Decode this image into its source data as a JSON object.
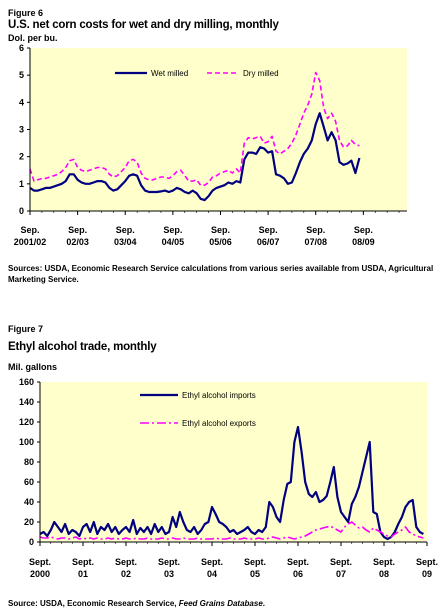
{
  "figure6": {
    "label": "Figure 6",
    "title": "U.S. net corn costs for wet and dry milling, monthly",
    "unit": "Dol. per bu.",
    "source": "Sources: USDA, Economic Research Service calculations from various series available from USDA, Agricultural Marketing Service."
  },
  "figure7": {
    "label": "Figure 7",
    "title": "Ethyl alcohol trade, monthly",
    "unit": "Mil. gallons",
    "source_prefix": "Source:  USDA, Economic Research Service, ",
    "source_italic": "Feed Grains Database",
    "source_suffix": "."
  },
  "chart_data": [
    {
      "type": "line",
      "background": "#ffffcc",
      "ylim": [
        0,
        6
      ],
      "yticks": [
        0,
        1,
        2,
        3,
        4,
        5,
        6
      ],
      "xlim": [
        0,
        95
      ],
      "xtick_positions": [
        0,
        12,
        24,
        36,
        48,
        60,
        72,
        84
      ],
      "xtick_labels": [
        [
          "Sep.",
          "2001/02"
        ],
        [
          "Sep.",
          "02/03"
        ],
        [
          "Sep.",
          "03/04"
        ],
        [
          "Sep.",
          "04/05"
        ],
        [
          "Sep.",
          "05/06"
        ],
        [
          "Sep.",
          "06/07"
        ],
        [
          "Sep.",
          "07/08"
        ],
        [
          "Sep.",
          "08/09"
        ]
      ],
      "grid": false,
      "legend_position": "top",
      "series": [
        {
          "name": "Wet milled",
          "color": "#000080",
          "dash": "solid",
          "values": [
            0.85,
            0.75,
            0.75,
            0.8,
            0.85,
            0.85,
            0.9,
            0.95,
            1.0,
            1.1,
            1.35,
            1.35,
            1.15,
            1.05,
            1.0,
            1.0,
            1.05,
            1.1,
            1.1,
            1.05,
            0.85,
            0.75,
            0.8,
            0.95,
            1.1,
            1.3,
            1.35,
            1.3,
            0.95,
            0.75,
            0.7,
            0.7,
            0.7,
            0.72,
            0.75,
            0.7,
            0.75,
            0.85,
            0.8,
            0.7,
            0.65,
            0.75,
            0.65,
            0.45,
            0.4,
            0.55,
            0.75,
            0.85,
            0.9,
            0.95,
            1.05,
            1.0,
            1.1,
            1.05,
            1.9,
            2.15,
            2.15,
            2.1,
            2.35,
            2.3,
            2.15,
            2.2,
            1.35,
            1.3,
            1.2,
            1.0,
            1.05,
            1.4,
            1.8,
            2.1,
            2.3,
            2.6,
            3.2,
            3.6,
            3.1,
            2.6,
            2.9,
            2.6,
            1.8,
            1.7,
            1.75,
            1.85,
            1.4,
            1.95
          ]
        },
        {
          "name": "Dry milled",
          "color": "#ff00ff",
          "dash": "dashed",
          "values": [
            1.55,
            1.1,
            1.15,
            1.2,
            1.2,
            1.25,
            1.3,
            1.35,
            1.45,
            1.6,
            1.85,
            1.9,
            1.6,
            1.5,
            1.45,
            1.5,
            1.55,
            1.6,
            1.6,
            1.55,
            1.35,
            1.25,
            1.3,
            1.45,
            1.6,
            1.85,
            1.9,
            1.8,
            1.4,
            1.2,
            1.15,
            1.15,
            1.2,
            1.25,
            1.25,
            1.2,
            1.3,
            1.45,
            1.5,
            1.3,
            1.1,
            1.1,
            1.15,
            0.95,
            0.95,
            1.05,
            1.25,
            1.3,
            1.4,
            1.45,
            1.5,
            1.4,
            1.55,
            1.4,
            2.5,
            2.7,
            2.65,
            2.7,
            2.75,
            2.5,
            2.55,
            2.75,
            2.2,
            2.1,
            2.2,
            2.3,
            2.5,
            2.8,
            3.2,
            3.6,
            3.9,
            4.3,
            5.1,
            4.8,
            3.8,
            3.4,
            3.6,
            3.3,
            2.6,
            2.35,
            2.4,
            2.6,
            2.45,
            2.4
          ]
        }
      ]
    },
    {
      "type": "line",
      "background": "#ffffcc",
      "ylim": [
        0,
        160
      ],
      "yticks": [
        0,
        20,
        40,
        60,
        80,
        100,
        120,
        140,
        160
      ],
      "xlim": [
        0,
        108
      ],
      "xtick_positions": [
        0,
        12,
        24,
        36,
        48,
        60,
        72,
        84,
        96,
        108
      ],
      "xtick_labels": [
        [
          "Sept.",
          "2000"
        ],
        [
          "Sept.",
          "01"
        ],
        [
          "Sept.",
          "02"
        ],
        [
          "Sept.",
          "03"
        ],
        [
          "Sept.",
          "04"
        ],
        [
          "Sept.",
          "05"
        ],
        [
          "Sept.",
          "06"
        ],
        [
          "Sept.",
          "07"
        ],
        [
          "Sept.",
          "08"
        ],
        [
          "Sept.",
          "09"
        ]
      ],
      "grid": false,
      "legend_position": "top-center",
      "series": [
        {
          "name": "Ethyl alcohol imports",
          "color": "#000080",
          "dash": "solid",
          "values": [
            8,
            10,
            6,
            12,
            20,
            15,
            10,
            18,
            8,
            12,
            10,
            6,
            15,
            18,
            10,
            20,
            8,
            15,
            12,
            18,
            10,
            15,
            8,
            12,
            15,
            10,
            22,
            8,
            14,
            10,
            15,
            8,
            18,
            10,
            15,
            8,
            10,
            25,
            15,
            30,
            20,
            12,
            10,
            15,
            8,
            12,
            18,
            20,
            35,
            28,
            20,
            18,
            15,
            10,
            12,
            8,
            10,
            12,
            15,
            10,
            8,
            12,
            10,
            15,
            40,
            35,
            25,
            20,
            42,
            58,
            60,
            100,
            115,
            90,
            60,
            48,
            45,
            50,
            40,
            42,
            46,
            60,
            75,
            45,
            30,
            25,
            20,
            38,
            45,
            55,
            70,
            85,
            100,
            30,
            28,
            10,
            5,
            3,
            5,
            10,
            18,
            25,
            35,
            40,
            42,
            15,
            10,
            8
          ]
        },
        {
          "name": "Ethyl alcohol exports",
          "color": "#ff00ff",
          "dash": "dashdot",
          "values": [
            5,
            4,
            4,
            5,
            4,
            3,
            4,
            4,
            3,
            4,
            5,
            3,
            4,
            3,
            4,
            3,
            4,
            3,
            3,
            4,
            3,
            4,
            3,
            3,
            4,
            3,
            3,
            4,
            3,
            3,
            4,
            3,
            3,
            3,
            4,
            3,
            3,
            4,
            3,
            3,
            4,
            3,
            3,
            3,
            4,
            3,
            3,
            3,
            3,
            4,
            3,
            3,
            3,
            4,
            3,
            3,
            3,
            4,
            3,
            3,
            3,
            4,
            3,
            3,
            4,
            5,
            4,
            3,
            4,
            5,
            4,
            3,
            4,
            5,
            6,
            8,
            10,
            12,
            13,
            14,
            15,
            16,
            14,
            12,
            10,
            15,
            18,
            20,
            17,
            14,
            15,
            12,
            10,
            14,
            12,
            10,
            8,
            6,
            5,
            8,
            10,
            12,
            15,
            10,
            8,
            6,
            5,
            4
          ]
        }
      ]
    }
  ]
}
